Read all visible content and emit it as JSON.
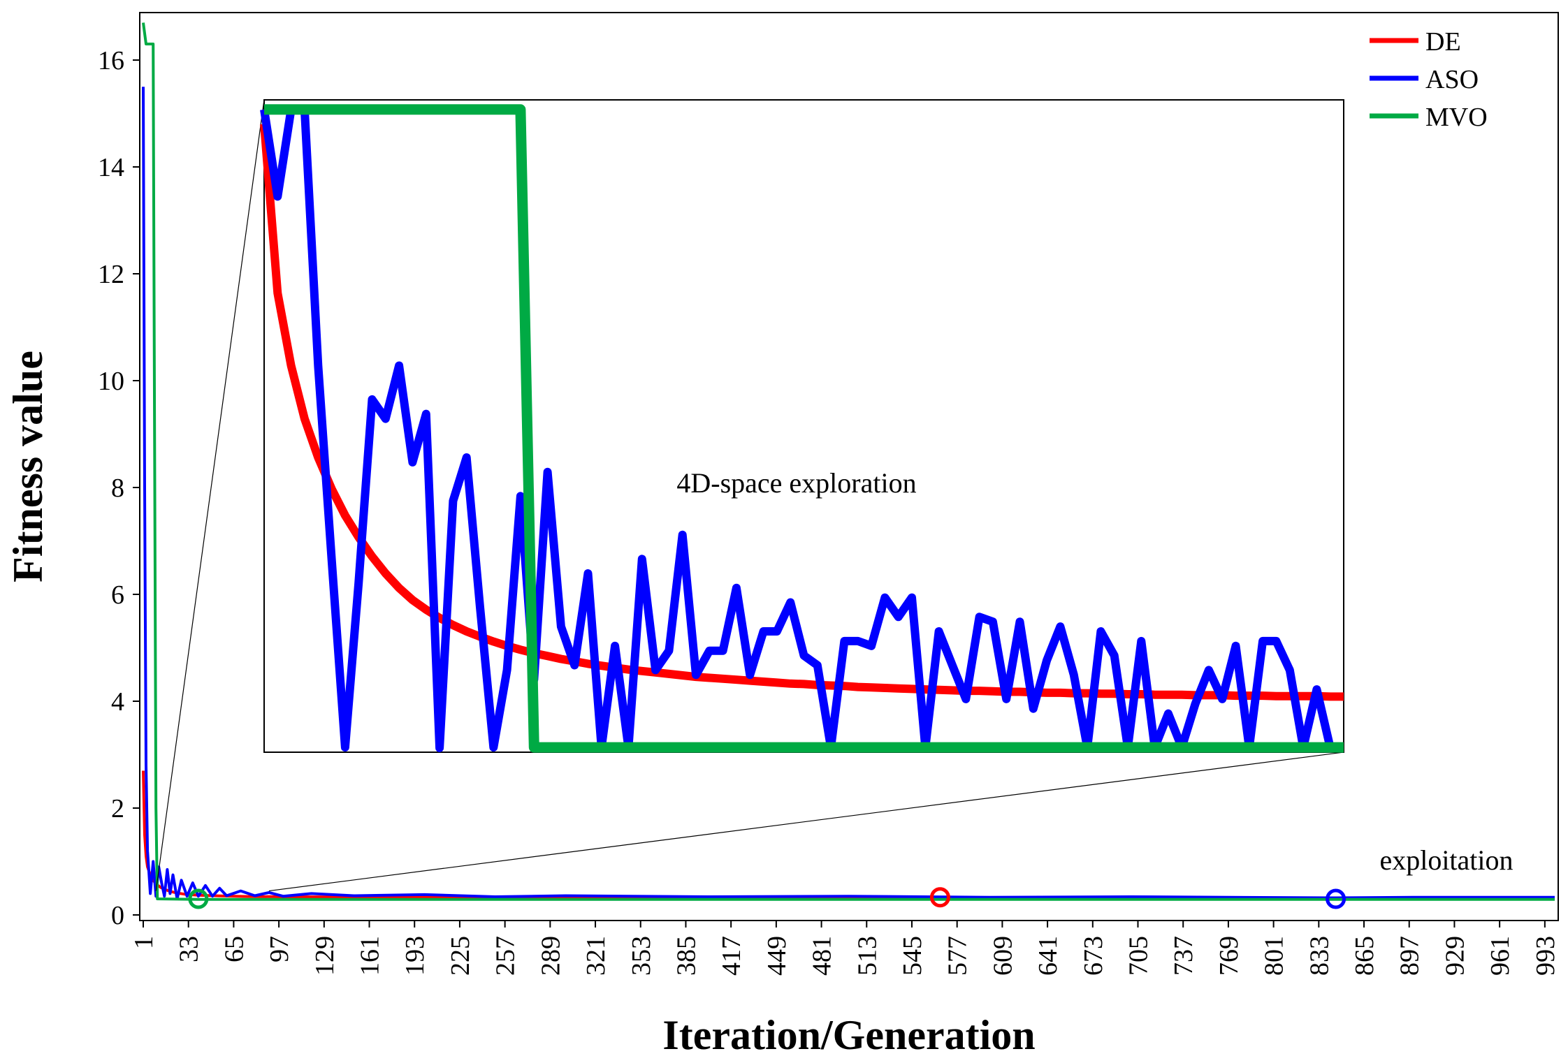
{
  "chart_data": {
    "type": "line",
    "xlabel": "Iteration/Generation",
    "ylabel": "Fitness value",
    "xlim": [
      1,
      1000
    ],
    "ylim": [
      0,
      17
    ],
    "x_ticks": [
      1,
      33,
      65,
      97,
      129,
      161,
      193,
      225,
      257,
      289,
      321,
      353,
      385,
      417,
      449,
      481,
      513,
      545,
      577,
      609,
      641,
      673,
      705,
      737,
      769,
      801,
      833,
      865,
      897,
      929,
      961,
      993
    ],
    "y_ticks": [
      0,
      2,
      4,
      6,
      8,
      10,
      12,
      14,
      16
    ],
    "legend_position": "top-right",
    "series": [
      {
        "name": "DE",
        "color": "#ff0000",
        "points": [
          [
            1,
            2.7
          ],
          [
            2,
            1.5
          ],
          [
            3,
            1.1
          ],
          [
            4,
            0.9
          ],
          [
            6,
            0.75
          ],
          [
            8,
            0.65
          ],
          [
            10,
            0.58
          ],
          [
            13,
            0.52
          ],
          [
            16,
            0.48
          ],
          [
            20,
            0.44
          ],
          [
            25,
            0.41
          ],
          [
            30,
            0.39
          ],
          [
            40,
            0.37
          ],
          [
            55,
            0.355
          ],
          [
            75,
            0.345
          ],
          [
            100,
            0.34
          ],
          [
            150,
            0.335
          ],
          [
            200,
            0.33
          ],
          [
            300,
            0.325
          ],
          [
            400,
            0.322
          ],
          [
            500,
            0.32
          ],
          [
            565,
            0.32
          ],
          [
            700,
            0.318
          ],
          [
            850,
            0.317
          ],
          [
            1000,
            0.316
          ]
        ]
      },
      {
        "name": "ASO",
        "color": "#0000ff",
        "points": [
          [
            1,
            15.5
          ],
          [
            2,
            8.0
          ],
          [
            3,
            2.8
          ],
          [
            4,
            1.2
          ],
          [
            6,
            0.4
          ],
          [
            8,
            1.0
          ],
          [
            10,
            0.35
          ],
          [
            12,
            0.9
          ],
          [
            14,
            0.6
          ],
          [
            16,
            0.35
          ],
          [
            18,
            0.85
          ],
          [
            20,
            0.4
          ],
          [
            22,
            0.75
          ],
          [
            25,
            0.3
          ],
          [
            28,
            0.65
          ],
          [
            32,
            0.35
          ],
          [
            36,
            0.6
          ],
          [
            40,
            0.35
          ],
          [
            45,
            0.55
          ],
          [
            50,
            0.35
          ],
          [
            55,
            0.5
          ],
          [
            60,
            0.36
          ],
          [
            70,
            0.45
          ],
          [
            80,
            0.36
          ],
          [
            90,
            0.42
          ],
          [
            100,
            0.35
          ],
          [
            120,
            0.4
          ],
          [
            150,
            0.36
          ],
          [
            200,
            0.38
          ],
          [
            250,
            0.34
          ],
          [
            300,
            0.36
          ],
          [
            400,
            0.34
          ],
          [
            500,
            0.35
          ],
          [
            600,
            0.33
          ],
          [
            700,
            0.34
          ],
          [
            845,
            0.32
          ],
          [
            900,
            0.33
          ],
          [
            1000,
            0.33
          ]
        ]
      },
      {
        "name": "MVO",
        "color": "#00aa44",
        "points": [
          [
            1,
            16.7
          ],
          [
            3,
            16.3
          ],
          [
            8,
            16.3
          ],
          [
            9,
            9.0
          ],
          [
            10,
            2.0
          ],
          [
            11,
            0.3
          ],
          [
            40,
            0.29
          ],
          [
            200,
            0.29
          ],
          [
            500,
            0.29
          ],
          [
            1000,
            0.29
          ]
        ]
      }
    ],
    "markers": [
      {
        "series": "MVO",
        "x": 40,
        "y": 0.3,
        "color": "#00aa44"
      },
      {
        "series": "DE",
        "x": 565,
        "y": 0.33,
        "color": "#ff0000"
      },
      {
        "series": "ASO",
        "x": 845,
        "y": 0.3,
        "color": "#0000ff"
      }
    ],
    "inset": {
      "label": "4D-space exploration",
      "x_range": [
        10,
        90
      ],
      "DE": [
        15.0,
        11.5,
        10.0,
        8.9,
        8.1,
        7.45,
        6.9,
        6.45,
        6.05,
        5.7,
        5.4,
        5.15,
        4.95,
        4.78,
        4.63,
        4.5,
        4.39,
        4.29,
        4.2,
        4.12,
        4.05,
        3.99,
        3.93,
        3.88,
        3.83,
        3.79,
        3.75,
        3.71,
        3.68,
        3.65,
        3.62,
        3.59,
        3.56,
        3.54,
        3.52,
        3.5,
        3.48,
        3.46,
        3.44,
        3.42,
        3.41,
        3.39,
        3.38,
        3.37,
        3.35,
        3.34,
        3.33,
        3.32,
        3.31,
        3.3,
        3.29,
        3.28,
        3.27,
        3.27,
        3.26,
        3.25,
        3.25,
        3.24,
        3.23,
        3.23,
        3.22,
        3.22,
        3.21,
        3.21,
        3.2,
        3.2,
        3.19,
        3.19,
        3.19,
        3.18,
        3.18,
        3.18,
        3.17,
        3.17,
        3.17,
        3.16,
        3.16,
        3.16,
        3.16,
        3.15,
        3.15
      ],
      "ASO": [
        15.3,
        13.5,
        15.3,
        15.3,
        10.0,
        6.0,
        2.1,
        5.5,
        9.3,
        8.9,
        10.0,
        8.0,
        9.0,
        2.0,
        7.2,
        8.1,
        5.0,
        2.1,
        3.7,
        7.3,
        3.5,
        7.8,
        4.6,
        3.8,
        5.7,
        2.1,
        4.2,
        2.1,
        6.0,
        3.7,
        4.1,
        6.5,
        3.6,
        4.1,
        4.1,
        5.4,
        3.6,
        4.5,
        4.5,
        5.1,
        4.0,
        3.8,
        2.1,
        4.3,
        4.3,
        4.2,
        5.2,
        4.8,
        5.2,
        2.1,
        4.5,
        3.8,
        3.1,
        4.8,
        4.7,
        3.1,
        4.7,
        2.9,
        3.9,
        4.6,
        3.6,
        2.1,
        4.5,
        4.0,
        2.1,
        4.3,
        2.1,
        2.8,
        2.1,
        3.0,
        3.7,
        3.1,
        4.2,
        2.1,
        4.3,
        4.3,
        3.7,
        2.1,
        3.3,
        2.1,
        2.1
      ],
      "MVO": [
        15.3,
        15.3,
        15.3,
        15.3,
        15.3,
        15.3,
        15.3,
        15.3,
        15.3,
        15.3,
        15.3,
        15.3,
        15.3,
        15.3,
        15.3,
        15.3,
        15.3,
        15.3,
        15.3,
        15.3,
        2.1,
        2.1,
        2.1,
        2.1,
        2.1,
        2.1,
        2.1,
        2.1,
        2.1,
        2.1,
        2.1,
        2.1,
        2.1,
        2.1,
        2.1,
        2.1,
        2.1,
        2.1,
        2.1,
        2.1,
        2.1,
        2.1,
        2.1,
        2.1,
        2.1,
        2.1,
        2.1,
        2.1,
        2.1,
        2.1,
        2.1,
        2.1,
        2.1,
        2.1,
        2.1,
        2.1,
        2.1,
        2.1,
        2.1,
        2.1,
        2.1,
        2.1,
        2.1,
        2.1,
        2.1,
        2.1,
        2.1,
        2.1,
        2.1,
        2.1,
        2.1,
        2.1,
        2.1,
        2.1,
        2.1,
        2.1,
        2.1,
        2.1,
        2.1,
        2.1,
        2.1
      ],
      "ylim": [
        2.0,
        15.5
      ]
    },
    "annotations": [
      {
        "text": "4D-space exploration"
      },
      {
        "text": "exploitation"
      }
    ]
  }
}
